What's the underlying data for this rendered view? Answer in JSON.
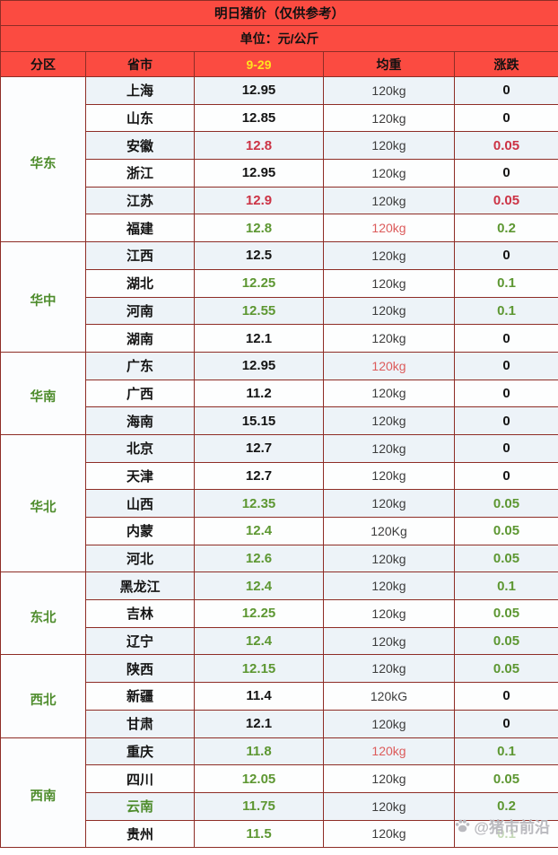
{
  "title": "明日猪价（仅供参考）",
  "unit_line": "单位：元/公斤",
  "columns": {
    "region": "分区",
    "province": "省市",
    "date": "9-29",
    "weight": "均重",
    "change": "涨跌"
  },
  "watermark": {
    "icon": "paw-icon",
    "text": "@猪市前沿"
  },
  "colors": {
    "header_bg": "#fb4b41",
    "date_yellow": "#ffe21f",
    "value_green": "#5d9732",
    "region_green": "#4e8c2c",
    "value_red": "#cc3345",
    "weight_red": "#dc5b5b",
    "border": "#8e2d26",
    "row_blue": "#edf3f8",
    "row_white": "#fdfefe"
  },
  "chart_data": {
    "type": "table",
    "title": "明日猪价（仅供参考）",
    "unit": "元/公斤",
    "date": "9-29",
    "columns": [
      "分区",
      "省市",
      "9-29",
      "均重",
      "涨跌"
    ],
    "regions": [
      {
        "name": "华东",
        "rows": [
          {
            "province": "上海",
            "price": "12.95",
            "price_color": "black",
            "weight": "120kg",
            "weight_color": "normal",
            "change": "0",
            "change_color": "black"
          },
          {
            "province": "山东",
            "price": "12.85",
            "price_color": "black",
            "weight": "120kg",
            "weight_color": "normal",
            "change": "0",
            "change_color": "black"
          },
          {
            "province": "安徽",
            "price": "12.8",
            "price_color": "red",
            "weight": "120kg",
            "weight_color": "normal",
            "change": "0.05",
            "change_color": "red"
          },
          {
            "province": "浙江",
            "price": "12.95",
            "price_color": "black",
            "weight": "120kg",
            "weight_color": "normal",
            "change": "0",
            "change_color": "black"
          },
          {
            "province": "江苏",
            "price": "12.9",
            "price_color": "red",
            "weight": "120kg",
            "weight_color": "normal",
            "change": "0.05",
            "change_color": "red"
          },
          {
            "province": "福建",
            "price": "12.8",
            "price_color": "green",
            "weight": "120kg",
            "weight_color": "red",
            "change": "0.2",
            "change_color": "green"
          }
        ]
      },
      {
        "name": "华中",
        "rows": [
          {
            "province": "江西",
            "price": "12.5",
            "price_color": "black",
            "weight": "120kg",
            "weight_color": "normal",
            "change": "0",
            "change_color": "black"
          },
          {
            "province": "湖北",
            "price": "12.25",
            "price_color": "green",
            "weight": "120kg",
            "weight_color": "normal",
            "change": "0.1",
            "change_color": "green"
          },
          {
            "province": "河南",
            "price": "12.55",
            "price_color": "green",
            "weight": "120kg",
            "weight_color": "normal",
            "change": "0.1",
            "change_color": "green"
          },
          {
            "province": "湖南",
            "price": "12.1",
            "price_color": "black",
            "weight": "120kg",
            "weight_color": "normal",
            "change": "0",
            "change_color": "black"
          }
        ]
      },
      {
        "name": "华南",
        "rows": [
          {
            "province": "广东",
            "price": "12.95",
            "price_color": "black",
            "weight": "120kg",
            "weight_color": "red",
            "change": "0",
            "change_color": "black"
          },
          {
            "province": "广西",
            "price": "11.2",
            "price_color": "black",
            "weight": "120kg",
            "weight_color": "normal",
            "change": "0",
            "change_color": "black"
          },
          {
            "province": "海南",
            "price": "15.15",
            "price_color": "black",
            "weight": "120kg",
            "weight_color": "normal",
            "change": "0",
            "change_color": "black"
          }
        ]
      },
      {
        "name": "华北",
        "rows": [
          {
            "province": "北京",
            "price": "12.7",
            "price_color": "black",
            "weight": "120kg",
            "weight_color": "normal",
            "change": "0",
            "change_color": "black"
          },
          {
            "province": "天津",
            "price": "12.7",
            "price_color": "black",
            "weight": "120kg",
            "weight_color": "normal",
            "change": "0",
            "change_color": "black"
          },
          {
            "province": "山西",
            "price": "12.35",
            "price_color": "green",
            "weight": "120kg",
            "weight_color": "normal",
            "change": "0.05",
            "change_color": "green"
          },
          {
            "province": "内蒙",
            "price": "12.4",
            "price_color": "green",
            "weight": "120Kg",
            "weight_color": "normal",
            "change": "0.05",
            "change_color": "green"
          },
          {
            "province": "河北",
            "price": "12.6",
            "price_color": "green",
            "weight": "120kg",
            "weight_color": "normal",
            "change": "0.05",
            "change_color": "green"
          }
        ]
      },
      {
        "name": "东北",
        "rows": [
          {
            "province": "黑龙江",
            "price": "12.4",
            "price_color": "green",
            "weight": "120kg",
            "weight_color": "normal",
            "change": "0.1",
            "change_color": "green"
          },
          {
            "province": "吉林",
            "price": "12.25",
            "price_color": "green",
            "weight": "120kg",
            "weight_color": "normal",
            "change": "0.05",
            "change_color": "green"
          },
          {
            "province": "辽宁",
            "price": "12.4",
            "price_color": "green",
            "weight": "120kg",
            "weight_color": "normal",
            "change": "0.05",
            "change_color": "green"
          }
        ]
      },
      {
        "name": "西北",
        "rows": [
          {
            "province": "陕西",
            "price": "12.15",
            "price_color": "green",
            "weight": "120kg",
            "weight_color": "normal",
            "change": "0.05",
            "change_color": "green"
          },
          {
            "province": "新疆",
            "price": "11.4",
            "price_color": "black",
            "weight": "120kG",
            "weight_color": "normal",
            "change": "0",
            "change_color": "black"
          },
          {
            "province": "甘肃",
            "price": "12.1",
            "price_color": "black",
            "weight": "120kg",
            "weight_color": "normal",
            "change": "0",
            "change_color": "black"
          }
        ]
      },
      {
        "name": "西南",
        "rows": [
          {
            "province": "重庆",
            "price": "11.8",
            "price_color": "green",
            "weight": "120kg",
            "weight_color": "red",
            "change": "0.1",
            "change_color": "green"
          },
          {
            "province": "四川",
            "price": "12.05",
            "price_color": "green",
            "weight": "120kg",
            "weight_color": "normal",
            "change": "0.05",
            "change_color": "green"
          },
          {
            "province": "云南",
            "price": "11.75",
            "price_color": "green",
            "weight": "120kg",
            "weight_color": "normal",
            "change": "0.2",
            "change_color": "green",
            "province_color": "green"
          },
          {
            "province": "贵州",
            "price": "11.5",
            "price_color": "green",
            "weight": "120kg",
            "weight_color": "normal",
            "change": "0.1",
            "change_color": "green",
            "change_obscured_by_watermark": true
          }
        ]
      }
    ]
  }
}
